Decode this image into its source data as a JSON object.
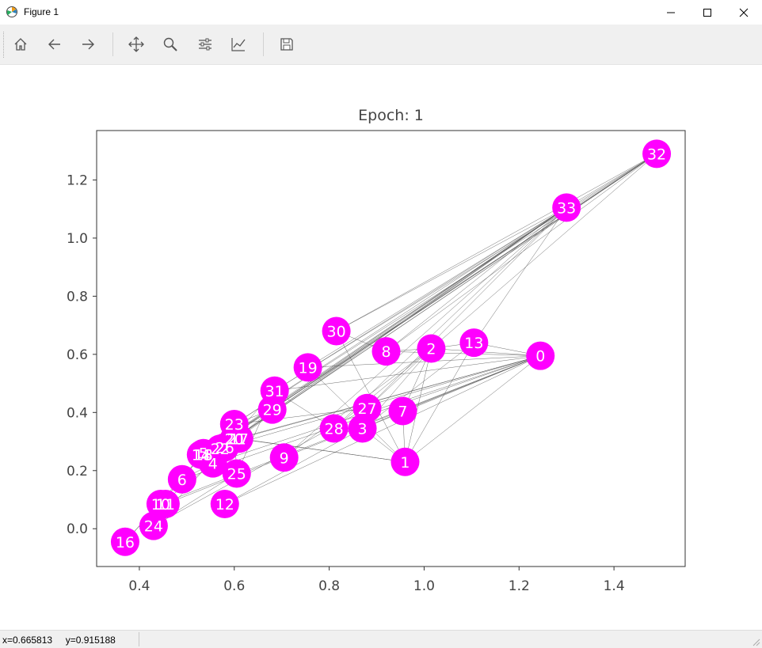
{
  "window": {
    "title": "Figure 1"
  },
  "toolbar": {
    "buttons": [
      {
        "name": "home-button",
        "icon": "home-icon"
      },
      {
        "name": "back-button",
        "icon": "arrow-left-icon"
      },
      {
        "name": "forward-button",
        "icon": "arrow-right-icon"
      },
      {
        "name": "pan-button",
        "icon": "move-icon"
      },
      {
        "name": "zoom-button",
        "icon": "magnifier-icon"
      },
      {
        "name": "subplots-button",
        "icon": "sliders-icon"
      },
      {
        "name": "customize-button",
        "icon": "chart-line-icon"
      },
      {
        "name": "save-button",
        "icon": "floppy-disk-icon"
      }
    ]
  },
  "chart_data": {
    "type": "scatter",
    "title": "Epoch: 1",
    "xlim": [
      0.31,
      1.55
    ],
    "ylim": [
      -0.13,
      1.37
    ],
    "xticks": [
      "0.4",
      "0.6",
      "0.8",
      "1.0",
      "1.2",
      "1.4"
    ],
    "yticks": [
      "0.0",
      "0.2",
      "0.4",
      "0.6",
      "0.8",
      "1.0",
      "1.2"
    ],
    "node_color": "#ff00ff",
    "edge_color": "#555555",
    "nodes": [
      {
        "label": "0",
        "x": 1.245,
        "y": 0.595
      },
      {
        "label": "1",
        "x": 0.96,
        "y": 0.23
      },
      {
        "label": "2",
        "x": 1.015,
        "y": 0.62
      },
      {
        "label": "3",
        "x": 0.87,
        "y": 0.345
      },
      {
        "label": "4",
        "x": 0.555,
        "y": 0.225
      },
      {
        "label": "5",
        "x": 0.535,
        "y": 0.26
      },
      {
        "label": "6",
        "x": 0.49,
        "y": 0.17
      },
      {
        "label": "7",
        "x": 0.955,
        "y": 0.405
      },
      {
        "label": "8",
        "x": 0.92,
        "y": 0.61
      },
      {
        "label": "9",
        "x": 0.705,
        "y": 0.245
      },
      {
        "label": "10",
        "x": 0.445,
        "y": 0.085
      },
      {
        "label": "11",
        "x": 0.455,
        "y": 0.085
      },
      {
        "label": "12",
        "x": 0.58,
        "y": 0.085
      },
      {
        "label": "13",
        "x": 1.105,
        "y": 0.64
      },
      {
        "label": "14",
        "x": 0.53,
        "y": 0.255
      },
      {
        "label": "15",
        "x": 0.535,
        "y": 0.255
      },
      {
        "label": "16",
        "x": 0.37,
        "y": -0.045
      },
      {
        "label": "17",
        "x": 0.61,
        "y": 0.31
      },
      {
        "label": "18",
        "x": 0.535,
        "y": 0.255
      },
      {
        "label": "19",
        "x": 0.755,
        "y": 0.555
      },
      {
        "label": "20",
        "x": 0.6,
        "y": 0.31
      },
      {
        "label": "21",
        "x": 0.605,
        "y": 0.31
      },
      {
        "label": "22",
        "x": 0.57,
        "y": 0.275
      },
      {
        "label": "23",
        "x": 0.6,
        "y": 0.36
      },
      {
        "label": "24",
        "x": 0.43,
        "y": 0.01
      },
      {
        "label": "25",
        "x": 0.605,
        "y": 0.19
      },
      {
        "label": "26",
        "x": 0.58,
        "y": 0.28
      },
      {
        "label": "27",
        "x": 0.88,
        "y": 0.415
      },
      {
        "label": "28",
        "x": 0.81,
        "y": 0.345
      },
      {
        "label": "29",
        "x": 0.68,
        "y": 0.41
      },
      {
        "label": "30",
        "x": 0.815,
        "y": 0.68
      },
      {
        "label": "31",
        "x": 0.685,
        "y": 0.475
      },
      {
        "label": "32",
        "x": 1.49,
        "y": 1.29
      },
      {
        "label": "33",
        "x": 1.3,
        "y": 1.105
      }
    ],
    "edges": [
      [
        0,
        1
      ],
      [
        0,
        2
      ],
      [
        0,
        3
      ],
      [
        0,
        4
      ],
      [
        0,
        5
      ],
      [
        0,
        6
      ],
      [
        0,
        7
      ],
      [
        0,
        8
      ],
      [
        0,
        10
      ],
      [
        0,
        11
      ],
      [
        0,
        12
      ],
      [
        0,
        13
      ],
      [
        0,
        17
      ],
      [
        0,
        19
      ],
      [
        0,
        21
      ],
      [
        0,
        31
      ],
      [
        1,
        2
      ],
      [
        1,
        3
      ],
      [
        1,
        7
      ],
      [
        1,
        13
      ],
      [
        1,
        17
      ],
      [
        1,
        19
      ],
      [
        1,
        21
      ],
      [
        1,
        30
      ],
      [
        2,
        3
      ],
      [
        2,
        7
      ],
      [
        2,
        8
      ],
      [
        2,
        9
      ],
      [
        2,
        13
      ],
      [
        2,
        27
      ],
      [
        2,
        28
      ],
      [
        2,
        32
      ],
      [
        3,
        7
      ],
      [
        3,
        12
      ],
      [
        3,
        13
      ],
      [
        4,
        6
      ],
      [
        4,
        10
      ],
      [
        5,
        6
      ],
      [
        5,
        10
      ],
      [
        5,
        16
      ],
      [
        6,
        16
      ],
      [
        8,
        30
      ],
      [
        8,
        32
      ],
      [
        8,
        33
      ],
      [
        9,
        33
      ],
      [
        13,
        33
      ],
      [
        14,
        32
      ],
      [
        14,
        33
      ],
      [
        15,
        32
      ],
      [
        15,
        33
      ],
      [
        18,
        32
      ],
      [
        18,
        33
      ],
      [
        19,
        33
      ],
      [
        20,
        32
      ],
      [
        20,
        33
      ],
      [
        22,
        32
      ],
      [
        22,
        33
      ],
      [
        23,
        25
      ],
      [
        23,
        27
      ],
      [
        23,
        29
      ],
      [
        23,
        32
      ],
      [
        23,
        33
      ],
      [
        24,
        25
      ],
      [
        24,
        27
      ],
      [
        24,
        31
      ],
      [
        25,
        31
      ],
      [
        26,
        29
      ],
      [
        26,
        33
      ],
      [
        27,
        33
      ],
      [
        28,
        31
      ],
      [
        28,
        33
      ],
      [
        29,
        32
      ],
      [
        29,
        33
      ],
      [
        30,
        32
      ],
      [
        30,
        33
      ],
      [
        31,
        32
      ],
      [
        31,
        33
      ],
      [
        32,
        33
      ]
    ]
  },
  "status": {
    "readout": "x=0.665813     y=0.915188"
  }
}
